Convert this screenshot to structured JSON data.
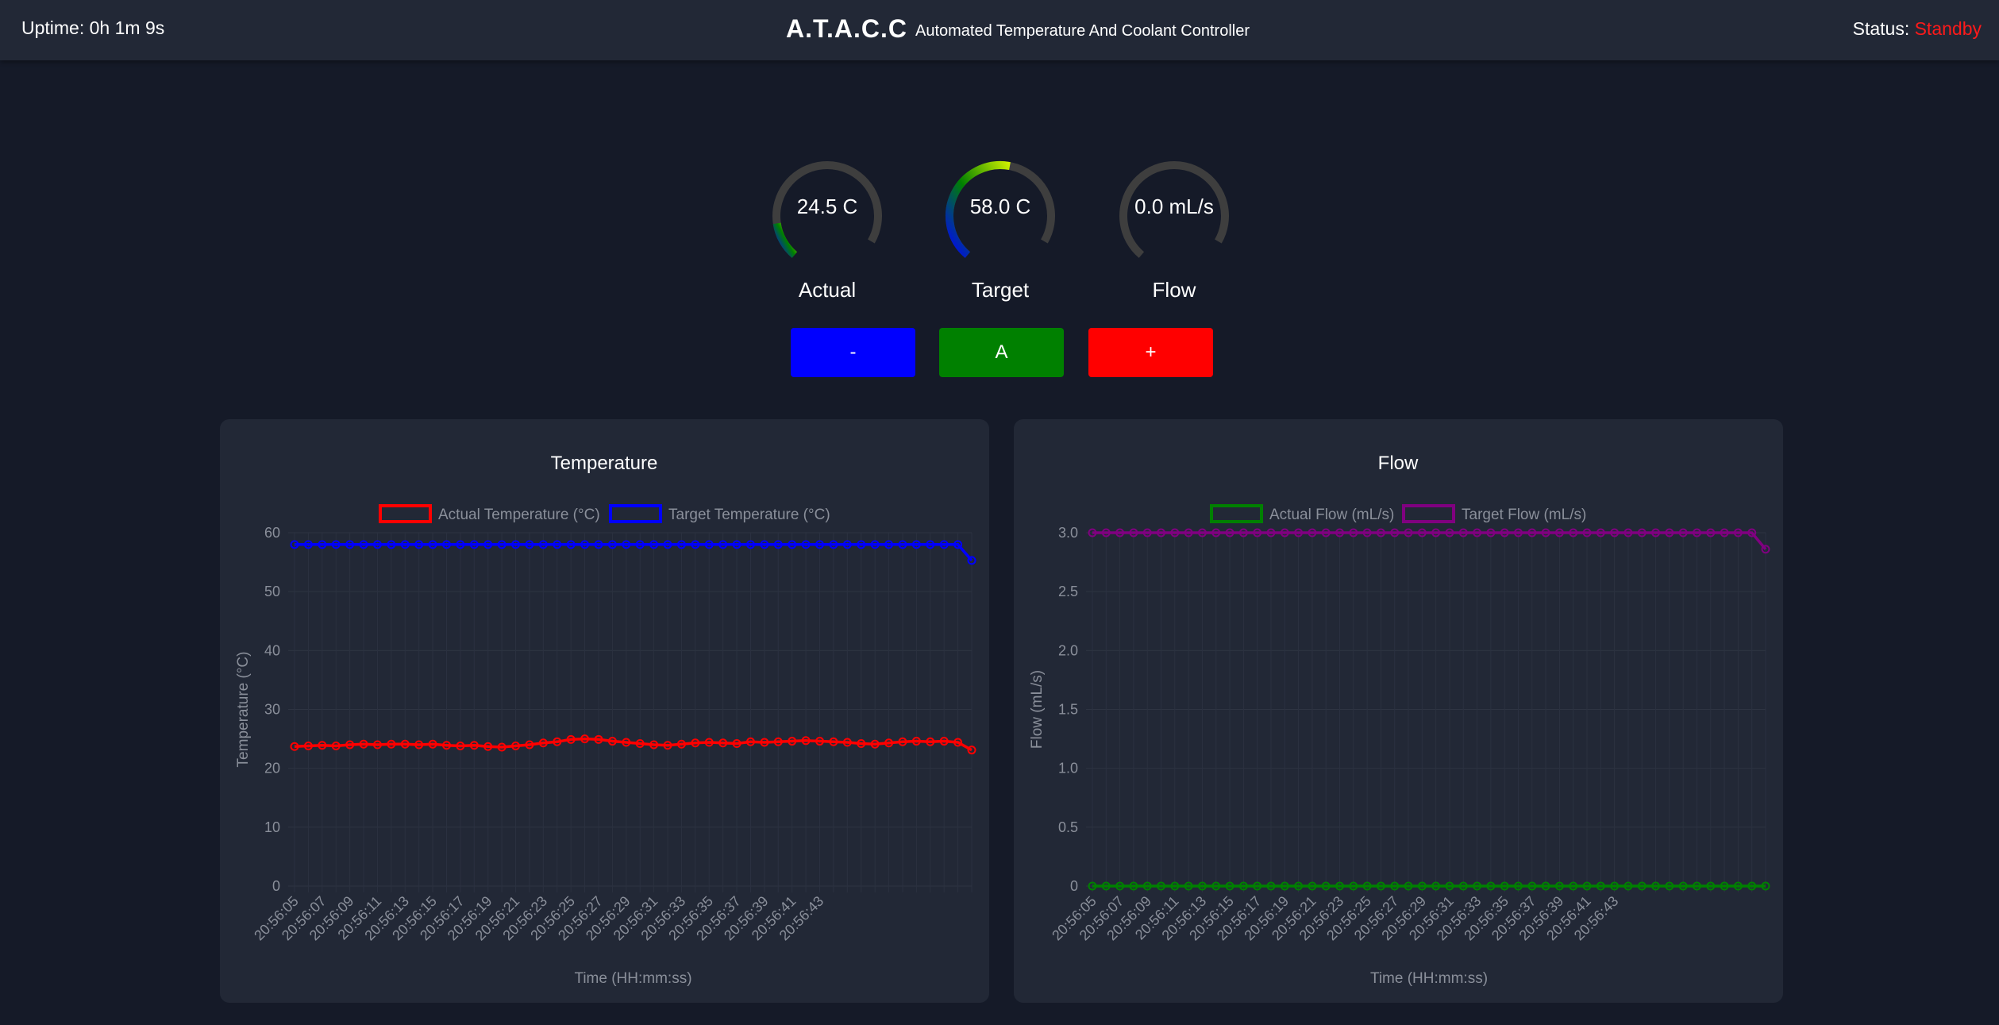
{
  "header": {
    "uptime": "Uptime: 0h 1m 9s",
    "brand": "A.T.A.C.C",
    "subtitle": "Automated Temperature And Coolant Controller",
    "status_label": "Status: ",
    "status_value": "Standby",
    "status_color": "#ff1a1a"
  },
  "gauges": [
    {
      "value_text": "24.5 C",
      "label": "Actual",
      "fraction": 0.16
    },
    {
      "value_text": "58.0 C",
      "label": "Target",
      "fraction": 0.58
    },
    {
      "value_text": "0.0 mL/s",
      "label": "Flow",
      "fraction": 0.0
    }
  ],
  "buttons": {
    "minus": {
      "label": "-",
      "color": "#0000ff"
    },
    "auto": {
      "label": "A",
      "color": "#008000"
    },
    "plus": {
      "label": "+",
      "color": "#ff0000"
    }
  },
  "chart_data": [
    {
      "type": "line",
      "title": "Temperature",
      "xlabel": "Time (HH:mm:ss)",
      "ylabel": "Temperature (°C)",
      "ylim": [
        0,
        60
      ],
      "yticks": [
        "0",
        "10",
        "20",
        "30",
        "40",
        "50",
        "60"
      ],
      "grid": true,
      "legend": "top",
      "xtick_labels": [
        "20:56:05",
        "20:56:07",
        "20:56:09",
        "20:56:11",
        "20:56:13",
        "20:56:15",
        "20:56:17",
        "20:56:19",
        "20:56:21",
        "20:56:23",
        "20:56:25",
        "20:56:27",
        "20:56:29",
        "20:56:31",
        "20:56:33",
        "20:56:35",
        "20:56:37",
        "20:56:39",
        "20:56:41",
        "20:56:43"
      ],
      "series": [
        {
          "name": "Actual Temperature (°C)",
          "color": "#ff0000",
          "values": [
            23.7,
            23.8,
            23.9,
            23.8,
            24.0,
            24.1,
            24.0,
            24.1,
            24.1,
            24.0,
            24.1,
            23.9,
            23.8,
            23.9,
            23.7,
            23.6,
            23.8,
            24.0,
            24.3,
            24.5,
            24.9,
            25.0,
            24.9,
            24.6,
            24.4,
            24.2,
            24.0,
            23.9,
            24.1,
            24.3,
            24.4,
            24.3,
            24.2,
            24.5,
            24.4,
            24.5,
            24.6,
            24.7,
            24.6,
            24.5,
            24.4,
            24.2,
            24.1,
            24.3,
            24.5,
            24.6,
            24.5,
            24.6,
            24.4,
            23.1
          ]
        },
        {
          "name": "Target Temperature (°C)",
          "color": "#0000ff",
          "values": [
            58,
            58,
            58,
            58,
            58,
            58,
            58,
            58,
            58,
            58,
            58,
            58,
            58,
            58,
            58,
            58,
            58,
            58,
            58,
            58,
            58,
            58,
            58,
            58,
            58,
            58,
            58,
            58,
            58,
            58,
            58,
            58,
            58,
            58,
            58,
            58,
            58,
            58,
            58,
            58,
            58,
            58,
            58,
            58,
            58,
            58,
            58,
            58,
            58,
            55.3
          ]
        }
      ]
    },
    {
      "type": "line",
      "title": "Flow",
      "xlabel": "Time (HH:mm:ss)",
      "ylabel": "Flow (mL/s)",
      "ylim": [
        0,
        3
      ],
      "yticks": [
        "0",
        "0.5",
        "1.0",
        "1.5",
        "2.0",
        "2.5",
        "3.0"
      ],
      "grid": true,
      "legend": "top",
      "xtick_labels": [
        "20:56:05",
        "20:56:07",
        "20:56:09",
        "20:56:11",
        "20:56:13",
        "20:56:15",
        "20:56:17",
        "20:56:19",
        "20:56:21",
        "20:56:23",
        "20:56:25",
        "20:56:27",
        "20:56:29",
        "20:56:31",
        "20:56:33",
        "20:56:35",
        "20:56:37",
        "20:56:39",
        "20:56:41",
        "20:56:43"
      ],
      "series": [
        {
          "name": "Actual Flow (mL/s)",
          "color": "#008000",
          "values": [
            0,
            0,
            0,
            0,
            0,
            0,
            0,
            0,
            0,
            0,
            0,
            0,
            0,
            0,
            0,
            0,
            0,
            0,
            0,
            0,
            0,
            0,
            0,
            0,
            0,
            0,
            0,
            0,
            0,
            0,
            0,
            0,
            0,
            0,
            0,
            0,
            0,
            0,
            0,
            0,
            0,
            0,
            0,
            0,
            0,
            0,
            0,
            0,
            0,
            0
          ]
        },
        {
          "name": "Target Flow (mL/s)",
          "color": "#800080",
          "values": [
            3,
            3,
            3,
            3,
            3,
            3,
            3,
            3,
            3,
            3,
            3,
            3,
            3,
            3,
            3,
            3,
            3,
            3,
            3,
            3,
            3,
            3,
            3,
            3,
            3,
            3,
            3,
            3,
            3,
            3,
            3,
            3,
            3,
            3,
            3,
            3,
            3,
            3,
            3,
            3,
            3,
            3,
            3,
            3,
            3,
            3,
            3,
            3,
            3,
            2.86
          ]
        }
      ]
    }
  ]
}
